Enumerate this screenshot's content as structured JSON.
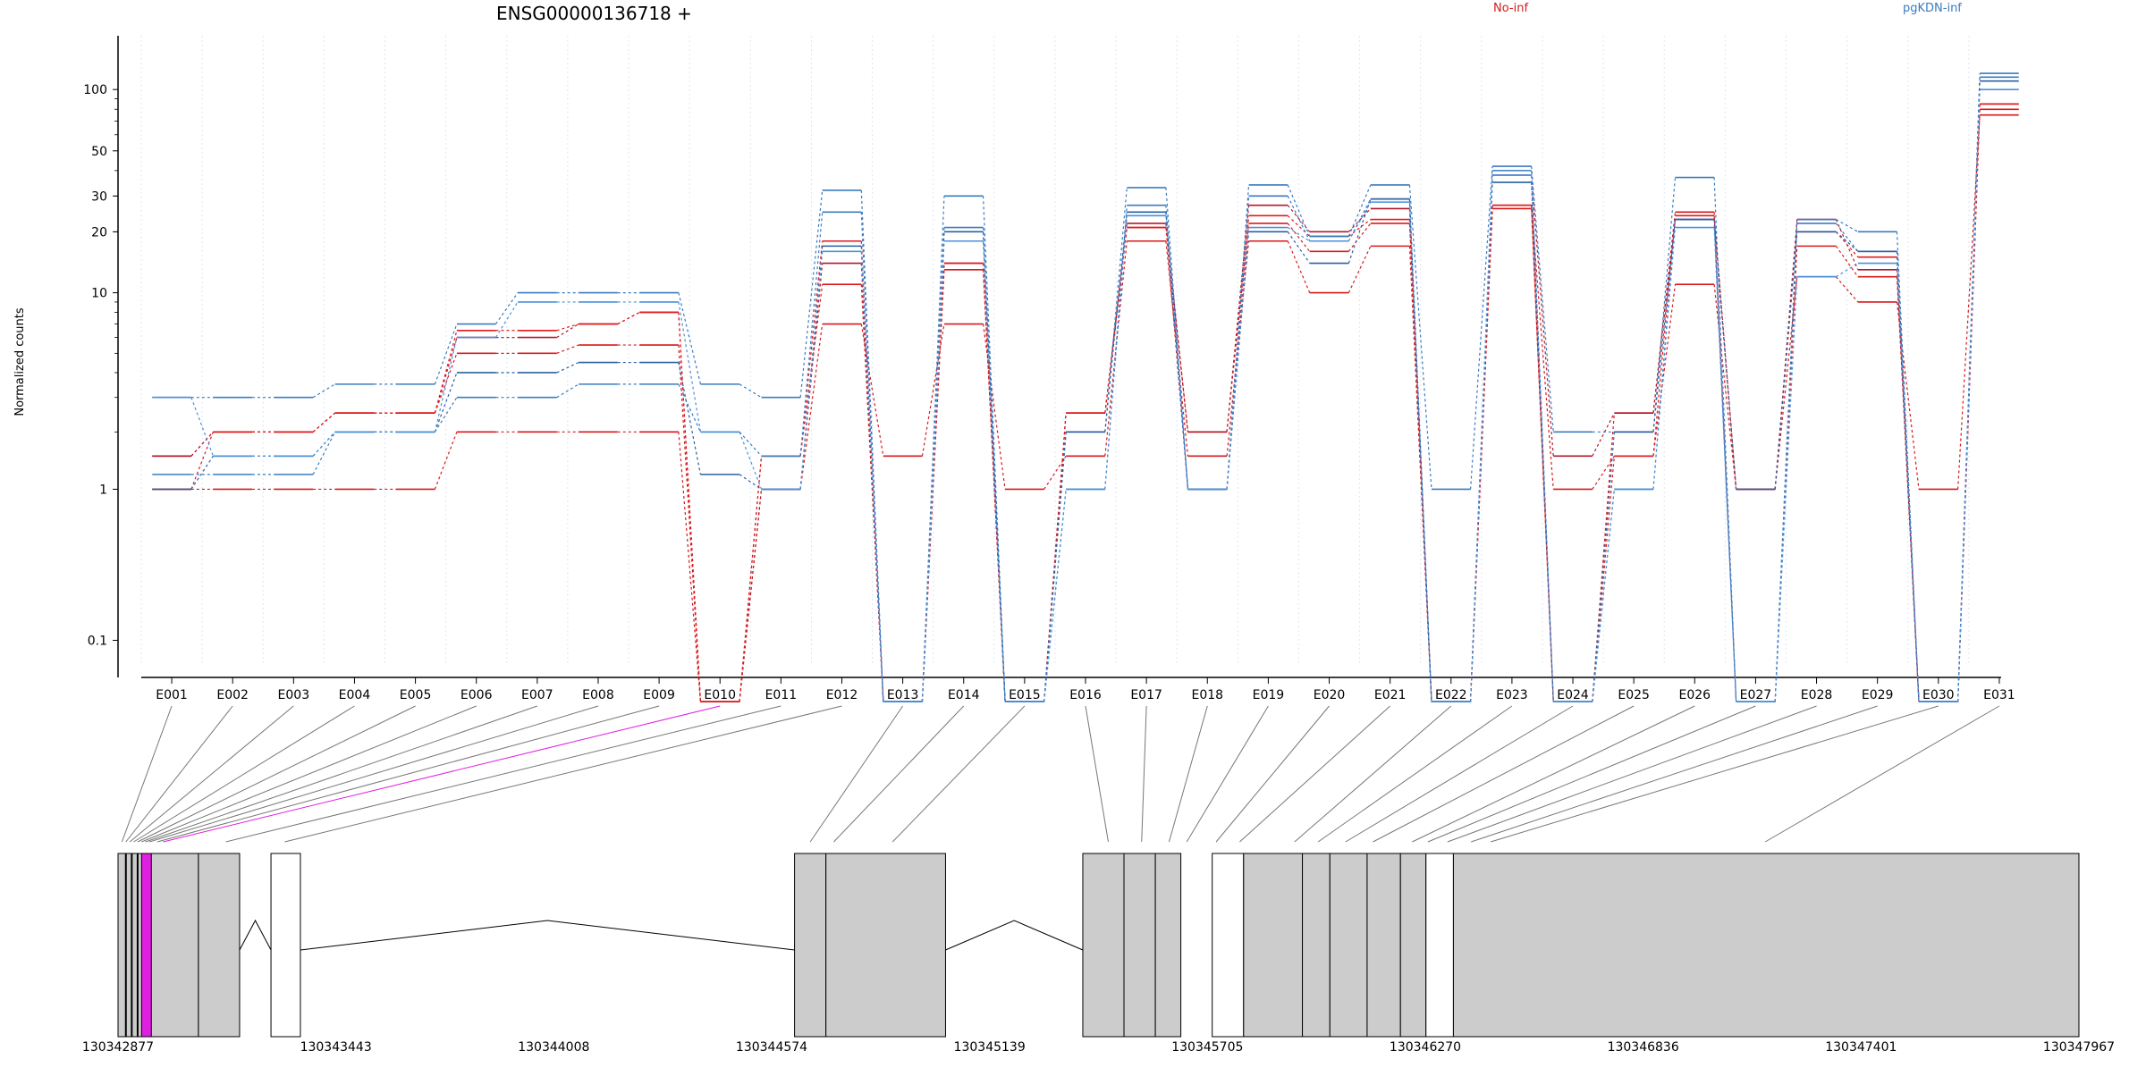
{
  "chart_data": {
    "type": "line",
    "title": "ENSG00000136718 +",
    "ylabel": "Normalized counts",
    "xlabel": "",
    "y_scale": "log-like (0.1 offset)",
    "y_ticks": [
      0.1,
      1,
      10,
      20,
      30,
      50,
      100
    ],
    "y_tick_labels": [
      "0.1",
      "1",
      "10",
      "20",
      "30",
      "50",
      "100"
    ],
    "grid": "x vertical dotted",
    "legend": [
      {
        "name": "No-inf",
        "color": "#d7191c",
        "placement": "top"
      },
      {
        "name": "pgKDN-inf",
        "color": "#3a7bbf",
        "placement": "top-right"
      }
    ],
    "categories": [
      "E001",
      "E002",
      "E003",
      "E004",
      "E005",
      "E006",
      "E007",
      "E008",
      "E009",
      "E010",
      "E011",
      "E012",
      "E013",
      "E014",
      "E015",
      "E016",
      "E017",
      "E018",
      "E019",
      "E020",
      "E021",
      "E022",
      "E023",
      "E024",
      "E025",
      "E026",
      "E027",
      "E028",
      "E029",
      "E030",
      "E031"
    ],
    "series": [
      {
        "group": "No-inf",
        "color": "#d7191c",
        "values": [
          1,
          1,
          1,
          1,
          1,
          2,
          2,
          2,
          2,
          0,
          1,
          7,
          1.5,
          7,
          1,
          1.5,
          18,
          1.5,
          18,
          10,
          17,
          0,
          27,
          1,
          1.5,
          11,
          1,
          12,
          9,
          1,
          75
        ]
      },
      {
        "group": "No-inf",
        "color": "#d7191c",
        "values": [
          1.5,
          2,
          2,
          2.5,
          2.5,
          5,
          5,
          5.5,
          5.5,
          0,
          1.5,
          11,
          0,
          13,
          0,
          2.5,
          21,
          2,
          22,
          16,
          22,
          0,
          26,
          0,
          2.5,
          25,
          0,
          17,
          12,
          0,
          80
        ]
      },
      {
        "group": "No-inf",
        "color": "#b2182b",
        "values": [
          1.5,
          2,
          2,
          2.5,
          2.5,
          6,
          6,
          7,
          8,
          0,
          1,
          14,
          0,
          14,
          0,
          2.5,
          22,
          2,
          27,
          20,
          26,
          0,
          38,
          1.5,
          2.5,
          23,
          1,
          23,
          13,
          0,
          85
        ]
      },
      {
        "group": "No-inf",
        "color": "#e31a1c",
        "values": [
          1,
          2,
          2,
          2.5,
          2.5,
          6.5,
          6.5,
          7,
          8,
          0,
          1.5,
          18,
          0,
          14,
          0,
          2.5,
          21,
          1,
          24,
          19,
          23,
          0,
          27,
          0,
          1.5,
          24,
          1,
          20,
          15,
          0,
          85
        ]
      },
      {
        "group": "pgKDN-inf",
        "color": "#3a7bbf",
        "values": [
          3,
          3,
          3,
          3.5,
          3.5,
          7,
          10,
          10,
          10,
          3.5,
          3,
          32,
          0,
          30,
          0,
          2,
          33,
          1,
          34,
          19,
          34,
          1,
          42,
          2,
          2,
          37,
          0,
          23,
          20,
          0,
          120
        ]
      },
      {
        "group": "pgKDN-inf",
        "color": "#3a7bbf",
        "values": [
          1.2,
          1.2,
          1.2,
          2,
          2,
          3,
          3,
          3.5,
          3.5,
          2,
          1.5,
          25,
          0,
          21,
          0,
          1,
          27,
          1,
          30,
          18,
          29,
          0,
          40,
          0,
          1,
          23,
          0,
          22,
          16,
          0,
          115
        ]
      },
      {
        "group": "pgKDN-inf",
        "color": "#2b5fa0",
        "values": [
          1,
          1.5,
          1.5,
          2,
          2,
          4,
          4,
          4.5,
          4.5,
          1.2,
          1,
          17,
          0,
          20,
          0,
          2,
          25,
          1,
          20,
          14,
          29,
          0,
          35,
          0,
          2,
          23,
          1,
          20,
          16,
          0,
          110
        ]
      },
      {
        "group": "pgKDN-inf",
        "color": "#4a90d9",
        "values": [
          3,
          1.5,
          1.5,
          2,
          2,
          6,
          9,
          9,
          9,
          2,
          1,
          16,
          0,
          18,
          0,
          1,
          24,
          1,
          21,
          18,
          28,
          0,
          38,
          0,
          1,
          21,
          0,
          12,
          14,
          0,
          100
        ]
      }
    ],
    "genomic_axis": {
      "tick_labels": [
        "130342877",
        "130343443",
        "130344008",
        "130344574",
        "130345139",
        "130345705",
        "130346270",
        "130346836",
        "130347401",
        "130347967"
      ],
      "highlighted_exon": "E010"
    }
  },
  "colors": {
    "no_inf": "#d7191c",
    "pgkdn_inf": "#3a7bbf",
    "exon_fill": "#cccccc",
    "highlight": "#e020e0"
  }
}
